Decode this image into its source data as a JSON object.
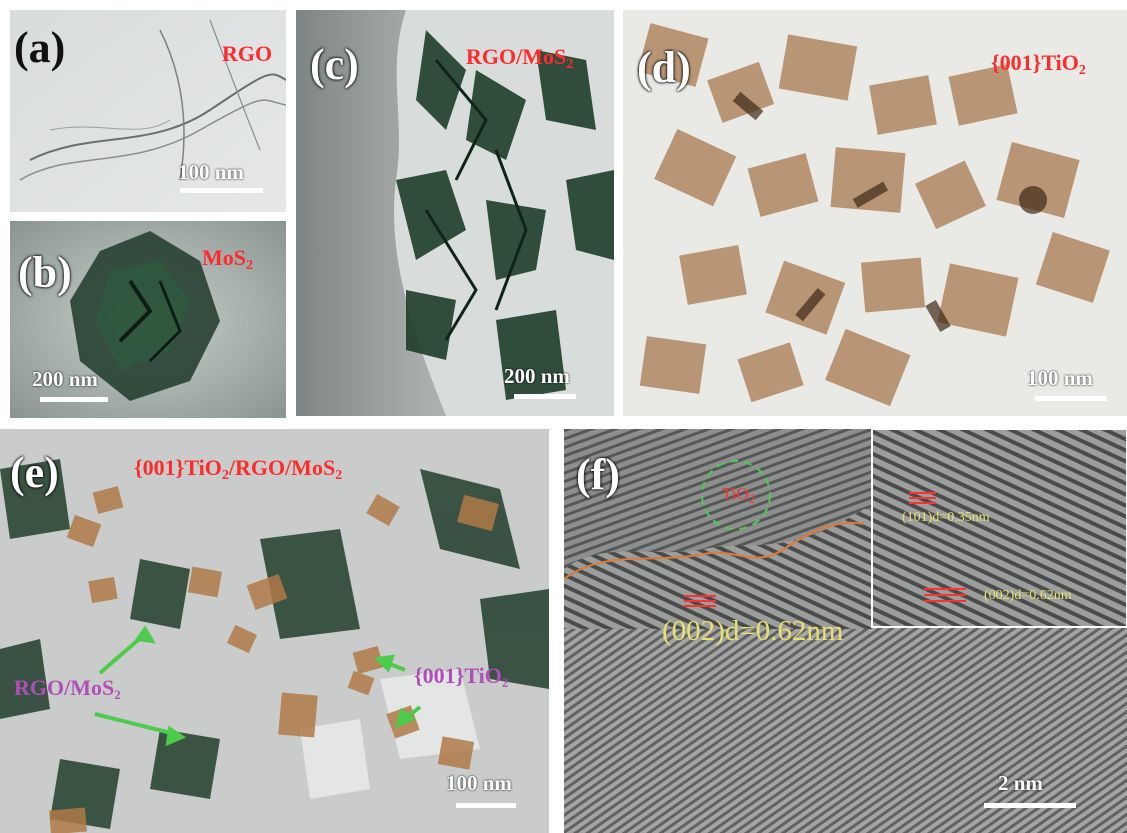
{
  "figure": {
    "panels": [
      {
        "id": "a",
        "label": "(a)",
        "sample": "RGO",
        "scale_bar": "100 nm"
      },
      {
        "id": "b",
        "label": "(b)",
        "sample_main": "MoS",
        "sample_sub": "2",
        "scale_bar": "200 nm"
      },
      {
        "id": "c",
        "label": "(c)",
        "sample_main": "RGO/MoS",
        "sample_sub": "2",
        "scale_bar": "200 nm"
      },
      {
        "id": "d",
        "label": "(d)",
        "sample_main": "{001}TiO",
        "sample_sub": "2",
        "scale_bar": "100 nm"
      },
      {
        "id": "e",
        "label": "(e)",
        "sample_p1": "{001}TiO",
        "sample_s1": "2",
        "sample_p2": "/RGO/MoS",
        "sample_s2": "2",
        "arrow_label_1_main": "RGO/MoS",
        "arrow_label_1_sub": "2",
        "arrow_label_2_main": "{001}TiO",
        "arrow_label_2_sub": "2",
        "scale_bar": "100 nm"
      },
      {
        "id": "f",
        "label": "(f)",
        "region_main": "TiO",
        "region_sub": "2",
        "fringe_main": "(002)d=0.62nm",
        "inset_fringe_1": "(101)d=0.35nm",
        "inset_fringe_2": "(002)d=0.62nm",
        "scale_bar": "2 nm"
      }
    ],
    "colors": {
      "label_red": "#ff2a2a",
      "arrow_label_purple": "#b04fb8",
      "arrow_green": "#4ccb4c",
      "fringe_yellow": "#e8e070",
      "scale_white": "#ffffff"
    }
  }
}
